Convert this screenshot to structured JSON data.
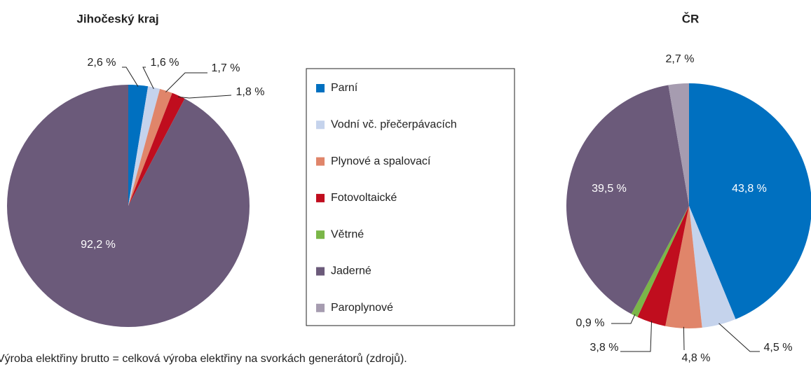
{
  "chart_data": [
    {
      "type": "pie",
      "title": "Jihočeský kraj",
      "categories": [
        "Parní",
        "Vodní vč. přečerpávacích",
        "Plynové a spalovací",
        "Fotovoltaické",
        "Jaderné"
      ],
      "values": [
        2.6,
        1.6,
        1.7,
        1.8,
        92.2
      ],
      "value_labels": [
        "2,6 %",
        "1,6 %",
        "1,7 %",
        "1,8 %",
        "92,2 %"
      ],
      "colors": [
        "#0070c0",
        "#c5d3ec",
        "#e0856a",
        "#c00d1e",
        "#6b5a7a"
      ]
    },
    {
      "type": "pie",
      "title": "ČR",
      "categories": [
        "Parní",
        "Vodní vč. přečerpávacích",
        "Plynové a spalovací",
        "Fotovoltaické",
        "Větrné",
        "Jaderné",
        "Paroplynové"
      ],
      "values": [
        43.8,
        4.5,
        4.8,
        3.8,
        0.9,
        39.5,
        2.7
      ],
      "value_labels": [
        "43,8 %",
        "4,5 %",
        "4,8 %",
        "3,8 %",
        "0,9 %",
        "39,5 %",
        "2,7 %"
      ],
      "colors": [
        "#0070c0",
        "#c5d3ec",
        "#e0856a",
        "#c00d1e",
        "#7ab648",
        "#6b5a7a",
        "#a69cb0"
      ]
    }
  ],
  "note": "Výroba elektřiny brutto = celková výroba elektřiny na svorkách generátorů (zdrojů)."
}
